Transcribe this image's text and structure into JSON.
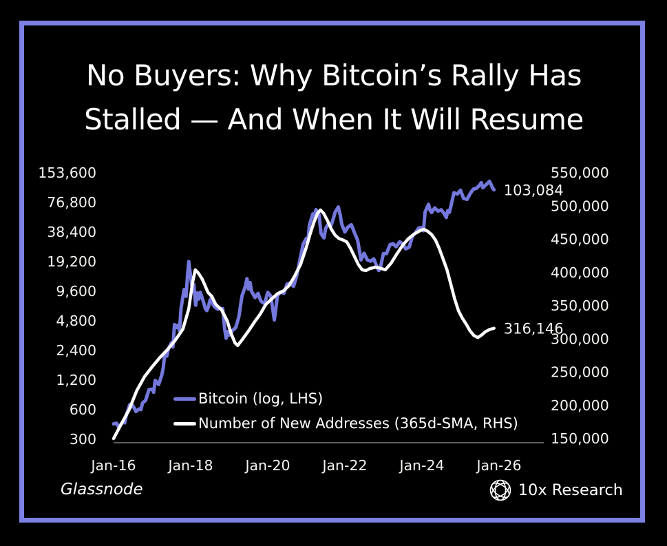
{
  "frame": {
    "background": "#000000",
    "border_color": "#7b80e2"
  },
  "title": {
    "line1": "No Buyers: Why Bitcoin’s Rally Has",
    "line2": "Stalled — And When It Will Resume"
  },
  "footer": {
    "source": "Glassnode",
    "brand": "10x Research",
    "brand_icon": "globe-lattice-icon"
  },
  "chart_data": {
    "type": "line",
    "title": "",
    "grid": false,
    "legend_position": "inside-bottom-left",
    "x_axis": {
      "tick_labels": [
        "Jan-16",
        "Jan-18",
        "Jan-20",
        "Jan-22",
        "Jan-24",
        "Jan-26"
      ],
      "tick_years": [
        2016,
        2018,
        2020,
        2022,
        2024,
        2026
      ],
      "range_years": [
        2016,
        2027.2
      ]
    },
    "left_axis": {
      "scale": "log2",
      "unit": "USD",
      "tick_values": [
        153600,
        76800,
        38400,
        19200,
        9600,
        4800,
        2400,
        1200,
        600,
        300
      ],
      "tick_labels": [
        "153,600",
        "76,800",
        "38,400",
        "19,200",
        "9,600",
        "4,800",
        "2,400",
        "1,200",
        "600",
        "300"
      ]
    },
    "right_axis": {
      "scale": "linear",
      "unit": "addresses",
      "tick_values": [
        550000,
        500000,
        450000,
        400000,
        350000,
        300000,
        250000,
        200000,
        150000
      ],
      "tick_labels": [
        "550,000",
        "500,000",
        "450,000",
        "400,000",
        "350,000",
        "300,000",
        "250,000",
        "200,000",
        "150,000"
      ]
    },
    "series": [
      {
        "name": "Bitcoin (log, LHS)",
        "axis": "left",
        "color": "#7478dc",
        "stroke_width": 5,
        "end_label": "103,084",
        "end_value": 103084,
        "points": [
          [
            2016.0,
            430
          ],
          [
            2016.08,
            437
          ],
          [
            2016.13,
            400
          ],
          [
            2016.17,
            415
          ],
          [
            2016.25,
            455
          ],
          [
            2016.29,
            440
          ],
          [
            2016.33,
            530
          ],
          [
            2016.42,
            675
          ],
          [
            2016.46,
            640
          ],
          [
            2016.5,
            660
          ],
          [
            2016.54,
            620
          ],
          [
            2016.58,
            575
          ],
          [
            2016.67,
            612
          ],
          [
            2016.71,
            600
          ],
          [
            2016.75,
            700
          ],
          [
            2016.83,
            745
          ],
          [
            2016.92,
            960
          ],
          [
            2017.0,
            970
          ],
          [
            2017.04,
            900
          ],
          [
            2017.08,
            1190
          ],
          [
            2017.17,
            1080
          ],
          [
            2017.25,
            1350
          ],
          [
            2017.29,
            1600
          ],
          [
            2017.33,
            2300
          ],
          [
            2017.38,
            2100
          ],
          [
            2017.42,
            2480
          ],
          [
            2017.5,
            2870
          ],
          [
            2017.54,
            2600
          ],
          [
            2017.58,
            4400
          ],
          [
            2017.63,
            4100
          ],
          [
            2017.67,
            4340
          ],
          [
            2017.71,
            3800
          ],
          [
            2017.75,
            6450
          ],
          [
            2017.83,
            10000
          ],
          [
            2017.88,
            8500
          ],
          [
            2017.92,
            14100
          ],
          [
            2017.95,
            19200
          ],
          [
            2018.0,
            13500
          ],
          [
            2018.04,
            10200
          ],
          [
            2018.08,
            11300
          ],
          [
            2018.13,
            6930
          ],
          [
            2018.17,
            9240
          ],
          [
            2018.21,
            8000
          ],
          [
            2018.25,
            9350
          ],
          [
            2018.29,
            8400
          ],
          [
            2018.33,
            7500
          ],
          [
            2018.38,
            6400
          ],
          [
            2018.42,
            6100
          ],
          [
            2018.46,
            6700
          ],
          [
            2018.5,
            7730
          ],
          [
            2018.54,
            8200
          ],
          [
            2018.58,
            7030
          ],
          [
            2018.63,
            6620
          ],
          [
            2018.67,
            6450
          ],
          [
            2018.71,
            6300
          ],
          [
            2018.75,
            6500
          ],
          [
            2018.79,
            6350
          ],
          [
            2018.83,
            6400
          ],
          [
            2018.88,
            4020
          ],
          [
            2018.92,
            3200
          ],
          [
            2018.96,
            3740
          ],
          [
            2019.0,
            3440
          ],
          [
            2019.08,
            3820
          ],
          [
            2019.17,
            4100
          ],
          [
            2019.25,
            5270
          ],
          [
            2019.33,
            8560
          ],
          [
            2019.42,
            10820
          ],
          [
            2019.46,
            12900
          ],
          [
            2019.5,
            10090
          ],
          [
            2019.54,
            11800
          ],
          [
            2019.58,
            9590
          ],
          [
            2019.67,
            8290
          ],
          [
            2019.75,
            9150
          ],
          [
            2019.79,
            8200
          ],
          [
            2019.83,
            7550
          ],
          [
            2019.92,
            7190
          ],
          [
            2020.0,
            9350
          ],
          [
            2020.08,
            8550
          ],
          [
            2020.17,
            4900
          ],
          [
            2020.21,
            6440
          ],
          [
            2020.25,
            8620
          ],
          [
            2020.33,
            9450
          ],
          [
            2020.42,
            9140
          ],
          [
            2020.5,
            11350
          ],
          [
            2020.58,
            11650
          ],
          [
            2020.67,
            10780
          ],
          [
            2020.75,
            13800
          ],
          [
            2020.83,
            19700
          ],
          [
            2020.92,
            28990
          ],
          [
            2021.0,
            33110
          ],
          [
            2021.04,
            30400
          ],
          [
            2021.08,
            45240
          ],
          [
            2021.17,
            58790
          ],
          [
            2021.21,
            54000
          ],
          [
            2021.25,
            64800
          ],
          [
            2021.33,
            57750
          ],
          [
            2021.38,
            37330
          ],
          [
            2021.42,
            35040
          ],
          [
            2021.46,
            33500
          ],
          [
            2021.5,
            41630
          ],
          [
            2021.58,
            47130
          ],
          [
            2021.63,
            43790
          ],
          [
            2021.67,
            48000
          ],
          [
            2021.75,
            61320
          ],
          [
            2021.83,
            69000
          ],
          [
            2021.88,
            57010
          ],
          [
            2021.92,
            46220
          ],
          [
            2022.0,
            38480
          ],
          [
            2022.08,
            43190
          ],
          [
            2022.17,
            45540
          ],
          [
            2022.25,
            37650
          ],
          [
            2022.33,
            31790
          ],
          [
            2022.42,
            19990
          ],
          [
            2022.5,
            23340
          ],
          [
            2022.58,
            20050
          ],
          [
            2022.67,
            19430
          ],
          [
            2022.75,
            20490
          ],
          [
            2022.83,
            17160
          ],
          [
            2022.88,
            15600
          ],
          [
            2022.92,
            16540
          ],
          [
            2023.0,
            23130
          ],
          [
            2023.08,
            23140
          ],
          [
            2023.17,
            28480
          ],
          [
            2023.25,
            29250
          ],
          [
            2023.33,
            27220
          ],
          [
            2023.42,
            30480
          ],
          [
            2023.5,
            29230
          ],
          [
            2023.58,
            25930
          ],
          [
            2023.67,
            26970
          ],
          [
            2023.75,
            34650
          ],
          [
            2023.83,
            37720
          ],
          [
            2023.92,
            42270
          ],
          [
            2024.0,
            42580
          ],
          [
            2024.04,
            39500
          ],
          [
            2024.08,
            61200
          ],
          [
            2024.17,
            73500
          ],
          [
            2024.21,
            64000
          ],
          [
            2024.25,
            60640
          ],
          [
            2024.33,
            67540
          ],
          [
            2024.42,
            62680
          ],
          [
            2024.5,
            64630
          ],
          [
            2024.58,
            58970
          ],
          [
            2024.63,
            54000
          ],
          [
            2024.67,
            63330
          ],
          [
            2024.71,
            60800
          ],
          [
            2024.75,
            70220
          ],
          [
            2024.83,
            96450
          ],
          [
            2024.92,
            93430
          ],
          [
            2025.0,
            102400
          ],
          [
            2025.08,
            84380
          ],
          [
            2025.17,
            82550
          ],
          [
            2025.25,
            94180
          ],
          [
            2025.33,
            104600
          ],
          [
            2025.42,
            107140
          ],
          [
            2025.5,
            115760
          ],
          [
            2025.54,
            122000
          ],
          [
            2025.58,
            108240
          ],
          [
            2025.63,
            113000
          ],
          [
            2025.67,
            117000
          ],
          [
            2025.71,
            121000
          ],
          [
            2025.75,
            126000
          ],
          [
            2025.79,
            118000
          ],
          [
            2025.83,
            108000
          ],
          [
            2025.87,
            103084
          ]
        ]
      },
      {
        "name": "Number of New Addresses (365d-SMA, RHS)",
        "axis": "right",
        "color": "#ffffff",
        "stroke_width": 4.5,
        "end_label": "316,146",
        "end_value": 316146,
        "points": [
          [
            2016.0,
            150000
          ],
          [
            2016.2,
            172000
          ],
          [
            2016.4,
            193000
          ],
          [
            2016.6,
            222000
          ],
          [
            2016.8,
            243000
          ],
          [
            2017.0,
            258000
          ],
          [
            2017.2,
            272000
          ],
          [
            2017.4,
            284000
          ],
          [
            2017.6,
            298000
          ],
          [
            2017.8,
            315000
          ],
          [
            2017.95,
            345000
          ],
          [
            2018.05,
            385000
          ],
          [
            2018.12,
            404000
          ],
          [
            2018.2,
            399000
          ],
          [
            2018.3,
            390000
          ],
          [
            2018.45,
            370000
          ],
          [
            2018.55,
            364000
          ],
          [
            2018.65,
            352000
          ],
          [
            2018.8,
            344000
          ],
          [
            2018.95,
            327000
          ],
          [
            2019.05,
            308000
          ],
          [
            2019.15,
            294000
          ],
          [
            2019.22,
            290000
          ],
          [
            2019.35,
            300000
          ],
          [
            2019.5,
            312000
          ],
          [
            2019.65,
            325000
          ],
          [
            2019.8,
            337000
          ],
          [
            2019.95,
            352000
          ],
          [
            2020.1,
            360000
          ],
          [
            2020.25,
            368000
          ],
          [
            2020.4,
            372000
          ],
          [
            2020.55,
            380000
          ],
          [
            2020.7,
            395000
          ],
          [
            2020.85,
            412000
          ],
          [
            2021.0,
            438000
          ],
          [
            2021.1,
            458000
          ],
          [
            2021.2,
            476000
          ],
          [
            2021.3,
            490000
          ],
          [
            2021.37,
            494000
          ],
          [
            2021.45,
            489000
          ],
          [
            2021.55,
            478000
          ],
          [
            2021.65,
            465000
          ],
          [
            2021.75,
            456000
          ],
          [
            2021.85,
            451000
          ],
          [
            2021.95,
            449000
          ],
          [
            2022.05,
            446000
          ],
          [
            2022.15,
            436000
          ],
          [
            2022.25,
            424000
          ],
          [
            2022.35,
            412000
          ],
          [
            2022.45,
            404000
          ],
          [
            2022.55,
            403000
          ],
          [
            2022.65,
            406000
          ],
          [
            2022.8,
            408000
          ],
          [
            2022.95,
            406000
          ],
          [
            2023.05,
            404000
          ],
          [
            2023.2,
            414000
          ],
          [
            2023.35,
            428000
          ],
          [
            2023.5,
            441000
          ],
          [
            2023.65,
            451000
          ],
          [
            2023.8,
            458000
          ],
          [
            2023.95,
            463000
          ],
          [
            2024.05,
            465000
          ],
          [
            2024.15,
            462000
          ],
          [
            2024.25,
            457000
          ],
          [
            2024.35,
            449000
          ],
          [
            2024.45,
            436000
          ],
          [
            2024.55,
            420000
          ],
          [
            2024.65,
            404000
          ],
          [
            2024.75,
            382000
          ],
          [
            2024.85,
            360000
          ],
          [
            2024.95,
            342000
          ],
          [
            2025.05,
            331000
          ],
          [
            2025.15,
            322000
          ],
          [
            2025.25,
            312000
          ],
          [
            2025.35,
            305000
          ],
          [
            2025.45,
            302000
          ],
          [
            2025.55,
            306000
          ],
          [
            2025.65,
            311000
          ],
          [
            2025.75,
            314000
          ],
          [
            2025.87,
            316146
          ]
        ]
      }
    ]
  }
}
